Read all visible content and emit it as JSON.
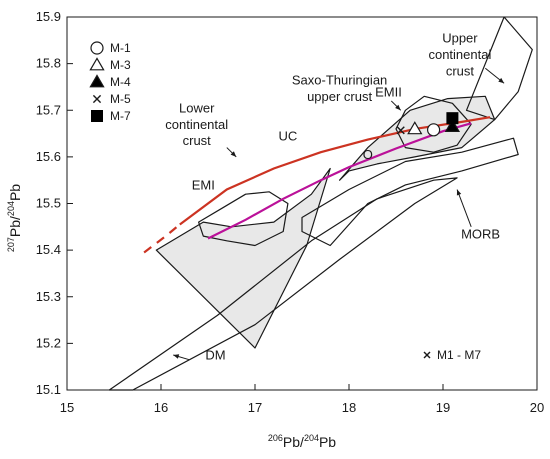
{
  "chart_data": {
    "type": "scatter",
    "x_axis": {
      "label_sup": "206",
      "label_main": "Pb/",
      "label_sup2": "204",
      "label_end": "Pb",
      "range": [
        15,
        20
      ],
      "ticks": [
        15,
        16,
        17,
        18,
        19,
        20
      ],
      "tick_labels": [
        "15",
        "16",
        "17",
        "18",
        "19",
        "20"
      ]
    },
    "y_axis": {
      "label_sup": "207",
      "label_main": "Pb/",
      "label_sup2": "204",
      "label_end": "Pb",
      "range": [
        15.1,
        15.9
      ],
      "ticks": [
        15.1,
        15.2,
        15.3,
        15.4,
        15.5,
        15.6,
        15.7,
        15.8,
        15.9
      ],
      "tick_labels": [
        "15.1",
        "15.2",
        "15.3",
        "15.4",
        "15.5",
        "15.6",
        "15.7",
        "15.8",
        "15.9"
      ]
    },
    "grid": false,
    "legend": {
      "placement": "top-left",
      "entries": [
        {
          "label": "M-1",
          "marker": "circle-open"
        },
        {
          "label": "M-3",
          "marker": "triangle-open"
        },
        {
          "label": "M-4",
          "marker": "triangle-filled"
        },
        {
          "label": "M-5",
          "marker": "x"
        },
        {
          "label": "M-7",
          "marker": "square-filled"
        }
      ]
    },
    "secondary_legend": {
      "marker": "x",
      "label": "M1 - M7"
    },
    "points": [
      {
        "series": "M-5",
        "marker": "x",
        "x": 18.55,
        "y": 15.657
      },
      {
        "series": "M-3",
        "marker": "triangle-open",
        "x": 18.7,
        "y": 15.66
      },
      {
        "series": "M-1",
        "marker": "circle-open",
        "x": 18.9,
        "y": 15.658
      },
      {
        "series": "M-4",
        "marker": "triangle-filled",
        "x": 19.1,
        "y": 15.665
      },
      {
        "series": "M-7",
        "marker": "square-filled",
        "x": 19.1,
        "y": 15.683
      }
    ],
    "curves": [
      {
        "name": "UC",
        "color": "#cc3322",
        "solid_points": [
          [
            16.2,
            15.455
          ],
          [
            16.7,
            15.53
          ],
          [
            17.2,
            15.575
          ],
          [
            17.7,
            15.61
          ],
          [
            18.2,
            15.637
          ],
          [
            18.7,
            15.66
          ],
          [
            19.2,
            15.675
          ],
          [
            19.5,
            15.685
          ]
        ],
        "dashed_points": [
          [
            15.82,
            15.395
          ],
          [
            16.05,
            15.43
          ],
          [
            16.2,
            15.455
          ]
        ]
      },
      {
        "name": "O",
        "color": "#bb1199",
        "points": [
          [
            16.5,
            15.425
          ],
          [
            16.9,
            15.465
          ],
          [
            17.3,
            15.51
          ],
          [
            17.7,
            15.55
          ],
          [
            18.0,
            15.578
          ],
          [
            18.5,
            15.618
          ],
          [
            19.0,
            15.655
          ],
          [
            19.3,
            15.672
          ]
        ]
      }
    ],
    "regions": [
      {
        "name": "Lower continental crust",
        "fill": "#e8e8e8",
        "points": [
          [
            15.95,
            15.4
          ],
          [
            16.45,
            15.46
          ],
          [
            16.75,
            15.45
          ],
          [
            17.2,
            15.46
          ],
          [
            17.6,
            15.52
          ],
          [
            17.8,
            15.575
          ],
          [
            17.55,
            15.41
          ],
          [
            17.45,
            15.37
          ],
          [
            17.0,
            15.19
          ]
        ]
      },
      {
        "name": "Saxo-Thuringian upper crust",
        "fill": "#e8e8e8",
        "points": [
          [
            17.9,
            15.55
          ],
          [
            18.2,
            15.62
          ],
          [
            18.65,
            15.7
          ],
          [
            19.05,
            15.725
          ],
          [
            19.45,
            15.73
          ],
          [
            19.55,
            15.68
          ],
          [
            19.2,
            15.62
          ],
          [
            18.7,
            15.6
          ],
          [
            18.3,
            15.585
          ],
          [
            18.0,
            15.57
          ]
        ]
      },
      {
        "name": "Upper continental crust",
        "fill": "none",
        "points": [
          [
            19.25,
            15.7
          ],
          [
            19.65,
            15.9
          ],
          [
            19.95,
            15.83
          ],
          [
            19.8,
            15.74
          ],
          [
            19.55,
            15.68
          ]
        ]
      },
      {
        "name": "EMII",
        "fill": "none",
        "points": [
          [
            18.6,
            15.7
          ],
          [
            18.8,
            15.73
          ],
          [
            19.1,
            15.715
          ],
          [
            19.3,
            15.67
          ],
          [
            19.15,
            15.625
          ],
          [
            18.9,
            15.61
          ],
          [
            18.6,
            15.62
          ],
          [
            18.5,
            15.66
          ]
        ]
      },
      {
        "name": "EMI",
        "fill": "none",
        "points": [
          [
            16.4,
            15.46
          ],
          [
            16.65,
            15.49
          ],
          [
            16.9,
            15.52
          ],
          [
            17.15,
            15.525
          ],
          [
            17.35,
            15.5
          ],
          [
            17.3,
            15.44
          ],
          [
            17.0,
            15.41
          ],
          [
            16.7,
            15.42
          ],
          [
            16.45,
            15.43
          ]
        ]
      },
      {
        "name": "MORB",
        "fill": "none",
        "points": [
          [
            17.5,
            15.47
          ],
          [
            18.0,
            15.53
          ],
          [
            18.6,
            15.59
          ],
          [
            19.2,
            15.61
          ],
          [
            19.75,
            15.64
          ],
          [
            19.8,
            15.605
          ],
          [
            19.2,
            15.57
          ],
          [
            18.6,
            15.54
          ],
          [
            18.2,
            15.5
          ],
          [
            17.8,
            15.41
          ],
          [
            17.5,
            15.44
          ]
        ]
      },
      {
        "name": "DM",
        "fill": "none",
        "points": [
          [
            15.45,
            15.1
          ],
          [
            16.6,
            15.26
          ],
          [
            17.6,
            15.42
          ],
          [
            18.3,
            15.51
          ],
          [
            18.9,
            15.55
          ],
          [
            19.15,
            15.555
          ],
          [
            18.7,
            15.5
          ],
          [
            17.9,
            15.38
          ],
          [
            17.0,
            15.24
          ],
          [
            15.7,
            15.1
          ]
        ]
      }
    ],
    "annotations": [
      {
        "text": "Upper",
        "x": 19.18,
        "y": 15.845
      },
      {
        "text": "continental",
        "x": 19.18,
        "y": 15.81
      },
      {
        "text": "crust",
        "x": 19.18,
        "y": 15.775
      },
      {
        "text": "Saxo-Thuringian",
        "x": 17.9,
        "y": 15.755
      },
      {
        "text": "upper crust",
        "x": 17.9,
        "y": 15.72
      },
      {
        "text": "EMII",
        "x": 18.42,
        "y": 15.73
      },
      {
        "text": "Lower",
        "x": 16.38,
        "y": 15.695
      },
      {
        "text": "continental",
        "x": 16.38,
        "y": 15.66
      },
      {
        "text": "crust",
        "x": 16.38,
        "y": 15.625
      },
      {
        "text": "UC",
        "x": 17.35,
        "y": 15.635
      },
      {
        "text": "O",
        "x": 18.2,
        "y": 15.595
      },
      {
        "text": "EMI",
        "x": 16.45,
        "y": 15.53
      },
      {
        "text": "MORB",
        "x": 19.4,
        "y": 15.425
      },
      {
        "text": "DM",
        "x": 16.58,
        "y": 15.165
      }
    ],
    "leaders": [
      {
        "from": [
          19.45,
          15.79
        ],
        "to": [
          19.65,
          15.758
        ]
      },
      {
        "from": [
          18.45,
          15.72
        ],
        "to": [
          18.55,
          15.7
        ]
      },
      {
        "from": [
          16.7,
          15.62
        ],
        "to": [
          16.8,
          15.6
        ]
      },
      {
        "from": [
          19.3,
          15.45
        ],
        "to": [
          19.15,
          15.53
        ]
      },
      {
        "from": [
          16.3,
          15.165
        ],
        "to": [
          16.13,
          15.175
        ]
      }
    ]
  }
}
